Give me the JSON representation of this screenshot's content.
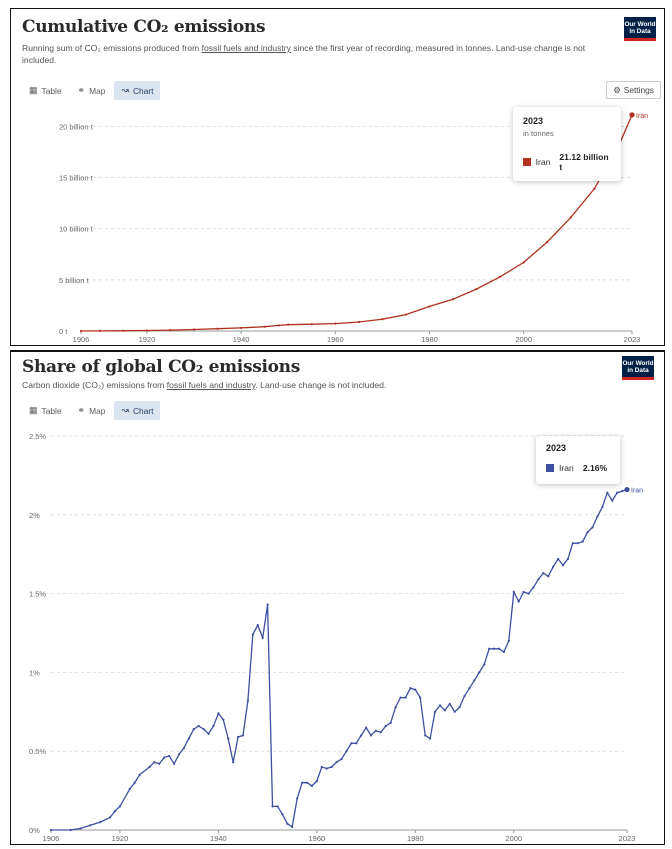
{
  "chart_data": [
    {
      "type": "line",
      "title": "Cumulative CO₂ emissions",
      "subtitle_pre": "Running sum of CO₂ emissions produced from ",
      "subtitle_link": "fossil fuels and industry",
      "subtitle_post": " since the first year of recording, measured in tonnes. Land-use change is not included.",
      "logo": "Our World in Data",
      "tabs": [
        "Table",
        "Map",
        "Chart"
      ],
      "active_tab": "Chart",
      "settings_label": "Settings",
      "x_ticks": [
        "1906",
        "1920",
        "1940",
        "1960",
        "1980",
        "2000",
        "2023"
      ],
      "y_ticks": [
        "0 t",
        "5 billion t",
        "10 billion t",
        "15 billion t",
        "20 billion t"
      ],
      "y_tick_values": [
        0,
        5,
        10,
        15,
        20
      ],
      "ylim": [
        0,
        21.5
      ],
      "xlim": [
        1906,
        2023
      ],
      "series": [
        {
          "name": "Iran",
          "color": "#b1301f",
          "x": [
            1906,
            1910,
            1915,
            1920,
            1925,
            1930,
            1935,
            1940,
            1945,
            1948,
            1950,
            1955,
            1960,
            1965,
            1970,
            1975,
            1980,
            1985,
            1990,
            1995,
            2000,
            2005,
            2010,
            2015,
            2020,
            2023
          ],
          "y": [
            0.0,
            0.01,
            0.03,
            0.05,
            0.09,
            0.15,
            0.22,
            0.3,
            0.42,
            0.55,
            0.62,
            0.66,
            0.72,
            0.88,
            1.15,
            1.6,
            2.4,
            3.1,
            4.1,
            5.3,
            6.7,
            8.7,
            11.1,
            13.9,
            17.9,
            21.12
          ]
        }
      ],
      "tooltip": {
        "year": "2023",
        "unit": "in tonnes",
        "label": "Iran",
        "value": "21.12 billion t"
      },
      "end_label": "Iran"
    },
    {
      "type": "line",
      "title": "Share of global CO₂ emissions",
      "subtitle_pre": "Carbon dioxide (CO₂) emissions from ",
      "subtitle_link": "fossil fuels and industry",
      "subtitle_post": ". Land-use change is not included.",
      "logo": "Our World in Data",
      "tabs": [
        "Table",
        "Map",
        "Chart"
      ],
      "active_tab": "Chart",
      "x_ticks": [
        "1906",
        "1920",
        "1940",
        "1960",
        "1980",
        "2000",
        "2023"
      ],
      "y_ticks": [
        "0%",
        "0.5%",
        "1%",
        "1.5%",
        "2%",
        "2.5%"
      ],
      "y_tick_values": [
        0,
        0.5,
        1,
        1.5,
        2,
        2.5
      ],
      "ylim": [
        0,
        2.5
      ],
      "xlim": [
        1906,
        2023
      ],
      "series": [
        {
          "name": "Iran",
          "color": "#3d4fa1",
          "x": [
            1906,
            1910,
            1912,
            1914,
            1916,
            1918,
            1919,
            1920,
            1922,
            1923,
            1924,
            1926,
            1927,
            1928,
            1929,
            1930,
            1931,
            1932,
            1933,
            1934,
            1935,
            1936,
            1937,
            1938,
            1939,
            1940,
            1941,
            1942,
            1943,
            1944,
            1945,
            1946,
            1947,
            1948,
            1949,
            1950,
            1951,
            1952,
            1953,
            1954,
            1955,
            1956,
            1957,
            1958,
            1959,
            1960,
            1961,
            1962,
            1963,
            1964,
            1965,
            1966,
            1967,
            1968,
            1969,
            1970,
            1971,
            1972,
            1973,
            1974,
            1975,
            1976,
            1977,
            1978,
            1979,
            1980,
            1981,
            1982,
            1983,
            1984,
            1985,
            1986,
            1987,
            1988,
            1989,
            1990,
            1991,
            1992,
            1993,
            1994,
            1995,
            1996,
            1997,
            1998,
            1999,
            2000,
            2001,
            2002,
            2003,
            2004,
            2005,
            2006,
            2007,
            2008,
            2009,
            2010,
            2011,
            2012,
            2013,
            2014,
            2015,
            2016,
            2017,
            2018,
            2019,
            2020,
            2021,
            2022,
            2023
          ],
          "y": [
            0.0,
            0.0,
            0.01,
            0.03,
            0.05,
            0.08,
            0.12,
            0.15,
            0.26,
            0.3,
            0.35,
            0.4,
            0.43,
            0.42,
            0.46,
            0.47,
            0.42,
            0.48,
            0.52,
            0.58,
            0.64,
            0.66,
            0.64,
            0.61,
            0.66,
            0.74,
            0.7,
            0.58,
            0.43,
            0.59,
            0.6,
            0.82,
            1.24,
            1.3,
            1.22,
            1.43,
            0.15,
            0.15,
            0.1,
            0.04,
            0.02,
            0.2,
            0.3,
            0.3,
            0.28,
            0.31,
            0.4,
            0.39,
            0.4,
            0.43,
            0.45,
            0.5,
            0.55,
            0.55,
            0.6,
            0.65,
            0.6,
            0.63,
            0.62,
            0.66,
            0.68,
            0.78,
            0.84,
            0.84,
            0.9,
            0.89,
            0.84,
            0.6,
            0.58,
            0.75,
            0.79,
            0.76,
            0.8,
            0.75,
            0.78,
            0.85,
            0.9,
            0.95,
            1.0,
            1.05,
            1.15,
            1.15,
            1.15,
            1.13,
            1.2,
            1.51,
            1.45,
            1.51,
            1.5,
            1.54,
            1.59,
            1.63,
            1.61,
            1.67,
            1.72,
            1.68,
            1.72,
            1.82,
            1.82,
            1.83,
            1.89,
            1.92,
            1.99,
            2.05,
            2.14,
            2.09,
            2.14,
            2.15,
            2.16
          ]
        }
      ],
      "tooltip": {
        "year": "2023",
        "label": "Iran",
        "value": "2.16%"
      },
      "end_label": "Iran"
    }
  ]
}
